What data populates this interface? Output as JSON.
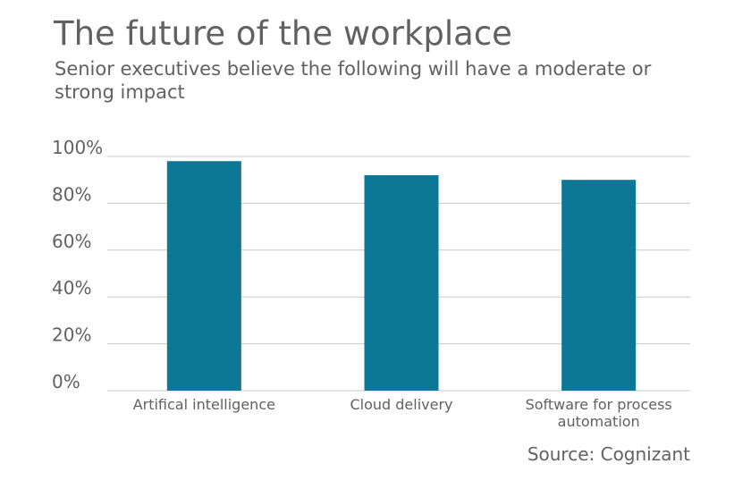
{
  "header": {
    "title": "The future of the workplace",
    "subtitle": "Senior executives believe the following will have a moderate or strong impact"
  },
  "footer": {
    "source": "Source: Cognizant"
  },
  "colors": {
    "bar": "#0d7895",
    "grid": "#c8c8c8",
    "text": "#616161"
  },
  "chart_data": {
    "type": "bar",
    "title": "The future of the workplace",
    "subtitle": "Senior executives believe the following will have a moderate or strong impact",
    "categories": [
      [
        "Artifical intelligence"
      ],
      [
        "Cloud delivery"
      ],
      [
        "Software for process",
        "automation"
      ]
    ],
    "values": [
      98,
      92,
      90
    ],
    "ylim": [
      0,
      100
    ],
    "yticks": [
      0,
      20,
      40,
      60,
      80,
      100
    ],
    "ytick_labels": [
      "0%",
      "20%",
      "40%",
      "60%",
      "80%",
      "100%"
    ],
    "grid": true,
    "legend": "none"
  }
}
